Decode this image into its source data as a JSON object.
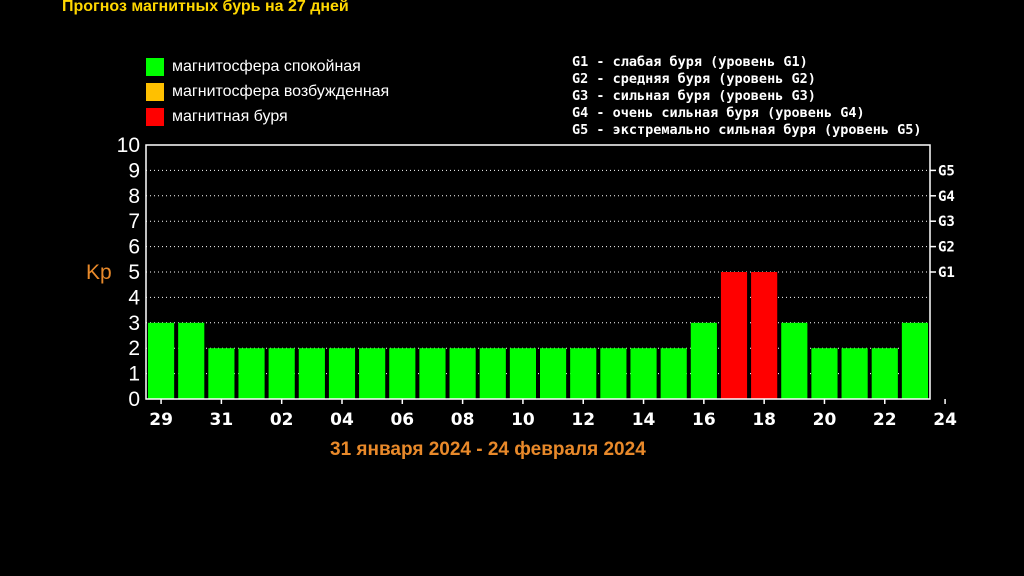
{
  "title": "Прогноз магнитных бурь на 27 дней",
  "legend": [
    {
      "label": "магнитосфера спокойная",
      "color": "#00ff00"
    },
    {
      "label": "магнитосфера возбужденная",
      "color": "#ffc000"
    },
    {
      "label": "магнитная буря",
      "color": "#ff0000"
    }
  ],
  "g_legend": [
    "G1 - слабая буря (уровень G1)",
    "G2 - средняя буря (уровень G2)",
    "G3 - сильная буря (уровень G3)",
    "G4 - очень сильная буря (уровень G4)",
    "G5 - экстремально сильная буря (уровень G5)"
  ],
  "date_range": "31 января 2024 - 24 февраля 2024",
  "chart_data": {
    "type": "bar",
    "ylabel": "Kp",
    "ylim": [
      0,
      10
    ],
    "y_ticks": [
      "0",
      "1",
      "2",
      "3",
      "4",
      "5",
      "6",
      "7",
      "8",
      "9",
      "10"
    ],
    "right_ticks": [
      {
        "label": "G1",
        "value": 5
      },
      {
        "label": "G2",
        "value": 6
      },
      {
        "label": "G3",
        "value": 7
      },
      {
        "label": "G4",
        "value": 8
      },
      {
        "label": "G5",
        "value": 9
      }
    ],
    "grid": true,
    "x_tick_labels": [
      "29",
      "31",
      "02",
      "04",
      "06",
      "08",
      "10",
      "12",
      "14",
      "16",
      "18",
      "20",
      "22",
      "24"
    ],
    "values": [
      3,
      3,
      2,
      2,
      2,
      2,
      2,
      2,
      2,
      2,
      2,
      2,
      2,
      2,
      2,
      2,
      2,
      2,
      3,
      5,
      5,
      3,
      2,
      2,
      2,
      3
    ],
    "colors": {
      "calm": "#00ff00",
      "storm": "#ff0000"
    },
    "storm_threshold": 5
  }
}
